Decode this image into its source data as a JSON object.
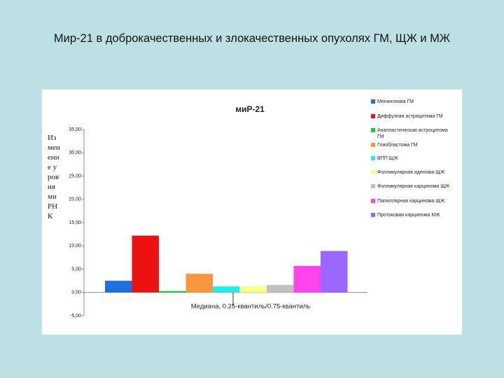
{
  "slide_title": "Мир-21 в доброкачественных и злокачественных опухолях ГМ, ЩЖ и МЖ",
  "chart_data": {
    "type": "bar",
    "title": "миР-21",
    "y_label": "Изменение уровня миРНК",
    "x_label": "Медиана, 0.25-квантиль/0.75-квантиль",
    "ylim": [
      -5,
      35
    ],
    "yticks": [
      {
        "value": 35,
        "label": "35,00"
      },
      {
        "value": 30,
        "label": "30,00"
      },
      {
        "value": 25,
        "label": "25,00"
      },
      {
        "value": 20,
        "label": "20,00"
      },
      {
        "value": 15,
        "label": "15,00"
      },
      {
        "value": 10,
        "label": "10,00"
      },
      {
        "value": 5,
        "label": "5,00"
      },
      {
        "value": 0,
        "label": "0,00"
      },
      {
        "value": -5,
        "label": "-5,00"
      }
    ],
    "legend": "right",
    "series": [
      {
        "name": "Менингиома ГМ",
        "color": "#1f6fe0",
        "values": [
          2.5
        ]
      },
      {
        "name": "Диффузная астроцитома ГМ",
        "color": "#ee1111",
        "values": [
          12.2
        ]
      },
      {
        "name": "Анапластическая астроцитома ГМ",
        "color": "#22cc33",
        "values": [
          0.3
        ]
      },
      {
        "name": "Глиобластома ГМ",
        "color": "#f7963e",
        "values": [
          4.0
        ]
      },
      {
        "name": "ВПП ЩЖ",
        "color": "#22eeee",
        "values": [
          1.3
        ]
      },
      {
        "name": "Фолликулярная аденома ЩЖ",
        "color": "#ffff88",
        "values": [
          1.3
        ]
      },
      {
        "name": "Фолликулярная карцинома ЩЖ",
        "color": "#c0c0c0",
        "values": [
          1.6
        ]
      },
      {
        "name": "Папиллярная карцинома ЩЖ",
        "color": "#ff44ee",
        "values": [
          5.7
        ]
      },
      {
        "name": "Протоковая карцинома МЖ",
        "color": "#9966ff",
        "values": [
          8.9
        ]
      }
    ]
  }
}
